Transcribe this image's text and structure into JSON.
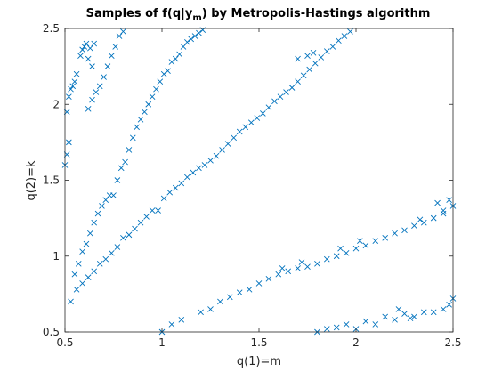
{
  "chart_data": {
    "type": "scatter",
    "title_parts": {
      "main": "Samples of f(q|y",
      "sub": "m",
      "tail": ") by Metropolis-Hastings algorithm"
    },
    "xlabel": "q(1)=m",
    "ylabel": "q(2)=k",
    "xlim": [
      0.5,
      2.5
    ],
    "ylim": [
      0.5,
      2.5
    ],
    "xticks": [
      0.5,
      1,
      1.5,
      2,
      2.5
    ],
    "yticks": [
      0.5,
      1,
      1.5,
      2,
      2.5
    ],
    "xtick_labels": [
      "0.5",
      "1",
      "1.5",
      "2",
      "2.5"
    ],
    "ytick_labels": [
      "0.5",
      "1",
      "1.5",
      "2",
      "2.5"
    ],
    "grid": false,
    "marker": "x",
    "color": "#0072BD",
    "series": [
      {
        "points": [
          [
            0.5,
            1.6
          ],
          [
            0.51,
            1.67
          ],
          [
            0.52,
            1.75
          ],
          [
            0.51,
            1.95
          ],
          [
            0.52,
            2.05
          ],
          [
            0.53,
            2.1
          ],
          [
            0.54,
            2.12
          ],
          [
            0.55,
            2.15
          ],
          [
            0.56,
            2.2
          ],
          [
            0.58,
            2.32
          ],
          [
            0.59,
            2.36
          ],
          [
            0.6,
            2.38
          ],
          [
            0.61,
            2.4
          ],
          [
            0.62,
            2.3
          ],
          [
            0.63,
            2.37
          ],
          [
            0.64,
            2.25
          ],
          [
            0.65,
            2.4
          ]
        ]
      },
      {
        "points": [
          [
            0.55,
            0.88
          ],
          [
            0.57,
            0.95
          ],
          [
            0.59,
            1.03
          ],
          [
            0.61,
            1.08
          ],
          [
            0.63,
            1.15
          ],
          [
            0.65,
            1.22
          ],
          [
            0.67,
            1.28
          ],
          [
            0.69,
            1.33
          ],
          [
            0.71,
            1.37
          ],
          [
            0.73,
            1.4
          ],
          [
            0.75,
            1.4
          ],
          [
            0.77,
            1.5
          ],
          [
            0.79,
            1.58
          ],
          [
            0.81,
            1.62
          ],
          [
            0.83,
            1.7
          ],
          [
            0.85,
            1.78
          ],
          [
            0.87,
            1.85
          ],
          [
            0.89,
            1.9
          ],
          [
            0.91,
            1.95
          ],
          [
            0.93,
            2.0
          ],
          [
            0.95,
            2.05
          ],
          [
            0.97,
            2.1
          ],
          [
            0.99,
            2.15
          ],
          [
            1.01,
            2.2
          ],
          [
            1.03,
            2.22
          ],
          [
            1.05,
            2.28
          ],
          [
            1.07,
            2.3
          ],
          [
            1.09,
            2.33
          ],
          [
            1.11,
            2.38
          ],
          [
            1.13,
            2.41
          ],
          [
            1.15,
            2.43
          ],
          [
            1.17,
            2.45
          ],
          [
            1.19,
            2.47
          ],
          [
            1.21,
            2.49
          ],
          [
            0.62,
            1.97
          ],
          [
            0.64,
            2.03
          ],
          [
            0.66,
            2.08
          ],
          [
            0.68,
            2.12
          ],
          [
            0.7,
            2.18
          ],
          [
            0.72,
            2.25
          ],
          [
            0.74,
            2.32
          ],
          [
            0.76,
            2.38
          ],
          [
            0.78,
            2.45
          ],
          [
            0.8,
            2.48
          ]
        ]
      },
      {
        "points": [
          [
            0.53,
            0.7
          ],
          [
            0.56,
            0.78
          ],
          [
            0.59,
            0.82
          ],
          [
            0.62,
            0.86
          ],
          [
            0.65,
            0.9
          ],
          [
            0.68,
            0.95
          ],
          [
            0.71,
            0.98
          ],
          [
            0.74,
            1.02
          ],
          [
            0.77,
            1.06
          ],
          [
            0.8,
            1.12
          ],
          [
            0.83,
            1.14
          ],
          [
            0.86,
            1.18
          ],
          [
            0.89,
            1.22
          ],
          [
            0.92,
            1.26
          ],
          [
            0.95,
            1.3
          ],
          [
            0.98,
            1.3
          ],
          [
            1.01,
            1.38
          ],
          [
            1.04,
            1.42
          ],
          [
            1.07,
            1.45
          ],
          [
            1.1,
            1.48
          ],
          [
            1.13,
            1.52
          ],
          [
            1.16,
            1.55
          ],
          [
            1.19,
            1.58
          ],
          [
            1.22,
            1.6
          ],
          [
            1.25,
            1.63
          ],
          [
            1.28,
            1.66
          ],
          [
            1.31,
            1.7
          ],
          [
            1.34,
            1.74
          ],
          [
            1.37,
            1.78
          ],
          [
            1.4,
            1.82
          ],
          [
            1.43,
            1.85
          ],
          [
            1.46,
            1.88
          ],
          [
            1.49,
            1.91
          ],
          [
            1.52,
            1.94
          ],
          [
            1.55,
            1.98
          ],
          [
            1.58,
            2.02
          ],
          [
            1.61,
            2.05
          ],
          [
            1.64,
            2.08
          ],
          [
            1.67,
            2.11
          ],
          [
            1.7,
            2.15
          ],
          [
            1.73,
            2.19
          ],
          [
            1.76,
            2.23
          ],
          [
            1.79,
            2.27
          ],
          [
            1.82,
            2.31
          ],
          [
            1.85,
            2.35
          ],
          [
            1.88,
            2.38
          ],
          [
            1.91,
            2.42
          ],
          [
            1.94,
            2.45
          ],
          [
            1.97,
            2.48
          ],
          [
            1.75,
            2.32
          ],
          [
            1.78,
            2.34
          ],
          [
            1.7,
            2.3
          ]
        ]
      },
      {
        "points": [
          [
            1.0,
            0.5
          ],
          [
            1.05,
            0.55
          ],
          [
            1.1,
            0.58
          ],
          [
            1.2,
            0.63
          ],
          [
            1.25,
            0.65
          ],
          [
            1.3,
            0.7
          ],
          [
            1.35,
            0.73
          ],
          [
            1.4,
            0.76
          ],
          [
            1.45,
            0.78
          ],
          [
            1.5,
            0.82
          ],
          [
            1.55,
            0.85
          ],
          [
            1.6,
            0.88
          ],
          [
            1.65,
            0.9
          ],
          [
            1.7,
            0.92
          ],
          [
            1.75,
            0.93
          ],
          [
            1.8,
            0.95
          ],
          [
            1.85,
            0.98
          ],
          [
            1.9,
            1.0
          ],
          [
            1.95,
            1.02
          ],
          [
            2.0,
            1.05
          ],
          [
            2.05,
            1.07
          ],
          [
            2.1,
            1.1
          ],
          [
            2.15,
            1.12
          ],
          [
            2.2,
            1.15
          ],
          [
            2.25,
            1.17
          ],
          [
            2.3,
            1.2
          ],
          [
            2.35,
            1.22
          ],
          [
            2.4,
            1.25
          ],
          [
            2.45,
            1.28
          ],
          [
            2.5,
            1.33
          ],
          [
            2.48,
            1.37
          ],
          [
            2.45,
            1.3
          ],
          [
            2.42,
            1.35
          ],
          [
            2.33,
            1.24
          ],
          [
            1.62,
            0.92
          ],
          [
            1.72,
            0.96
          ],
          [
            1.92,
            1.05
          ],
          [
            2.02,
            1.1
          ]
        ]
      },
      {
        "points": [
          [
            1.85,
            0.52
          ],
          [
            1.9,
            0.53
          ],
          [
            1.95,
            0.55
          ],
          [
            2.0,
            0.52
          ],
          [
            2.05,
            0.57
          ],
          [
            2.1,
            0.55
          ],
          [
            2.15,
            0.6
          ],
          [
            2.2,
            0.58
          ],
          [
            2.25,
            0.62
          ],
          [
            2.3,
            0.6
          ],
          [
            2.35,
            0.63
          ],
          [
            2.4,
            0.63
          ],
          [
            2.45,
            0.65
          ],
          [
            2.48,
            0.68
          ],
          [
            2.5,
            0.72
          ],
          [
            2.22,
            0.65
          ],
          [
            2.28,
            0.59
          ],
          [
            1.8,
            0.5
          ]
        ]
      }
    ]
  }
}
